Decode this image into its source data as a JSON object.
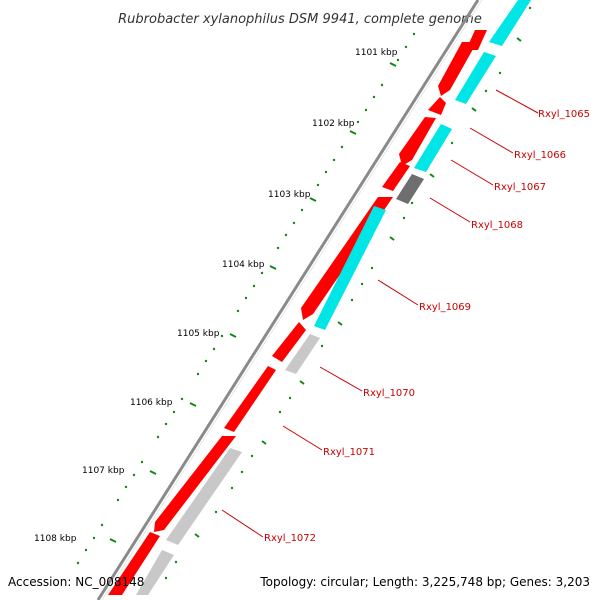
{
  "title": "Rubrobacter xylanophilus DSM 9941, complete genome",
  "footer": {
    "accession": "Accession: NC_008148",
    "summary": "Topology: circular; Length: 3,225,748 bp; Genes: 3,203"
  },
  "ruler": {
    "labels": [
      "1101 kbp",
      "1102 kbp",
      "1103 kbp",
      "1104 kbp",
      "1105 kbp",
      "1106 kbp",
      "1107 kbp",
      "1108 kbp"
    ]
  },
  "genes": [
    "Rxyl_1065",
    "Rxyl_1066",
    "Rxyl_1067",
    "Rxyl_1068",
    "Rxyl_1069",
    "Rxyl_1070",
    "Rxyl_1071",
    "Rxyl_1072"
  ],
  "colors": {
    "backbone": "#8a8a8a",
    "cds": "#ff0000",
    "cds_shade": "#b30000",
    "cyan": "#00e5e5",
    "light_gray": "#c8c8c8",
    "dark_gray": "#6e6e6e",
    "tick": "#118811",
    "label": "#cc0000"
  }
}
